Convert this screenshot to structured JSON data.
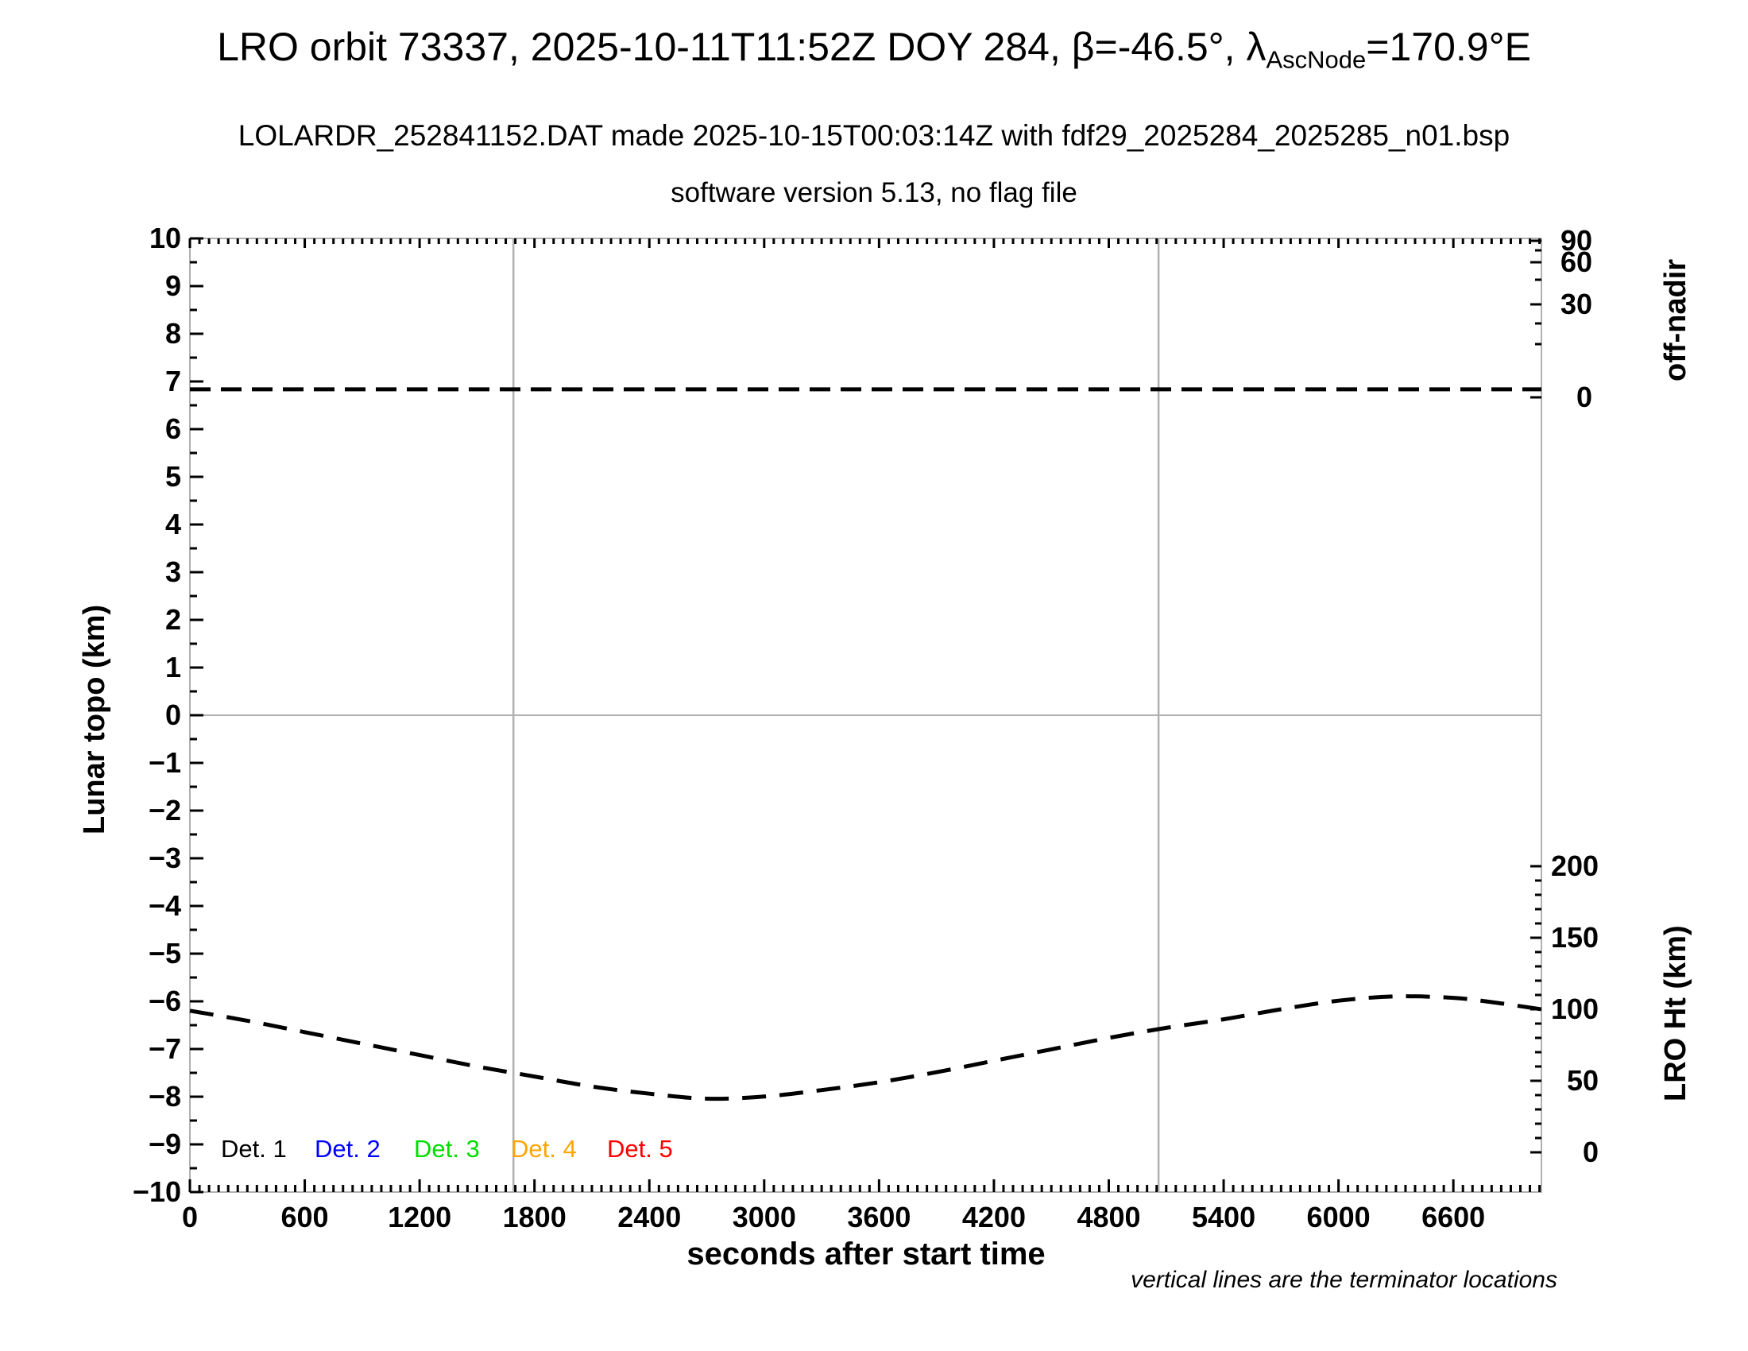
{
  "header": {
    "title_prefix": "LRO orbit 73337, 2025-10-11T11:52Z DOY 284, β=-46.5°, λ",
    "title_sub": "AscNode",
    "title_suffix": "=170.9°E",
    "subtitle": "LOLARDR_252841152.DAT made 2025-10-15T00:03:14Z with fdf29_2025284_2025285_n01.bsp",
    "version_line": "software version 5.13, no flag file"
  },
  "axes": {
    "x": {
      "title": "seconds after start time",
      "tick_labels": [
        "0",
        "600",
        "1200",
        "1800",
        "2400",
        "3000",
        "3600",
        "4200",
        "4800",
        "5400",
        "6000",
        "6600"
      ]
    },
    "left": {
      "title": "Lunar topo (km)",
      "tick_labels": [
        "10",
        "9",
        "8",
        "7",
        "6",
        "5",
        "4",
        "3",
        "2",
        "1",
        "0",
        "−1",
        "−2",
        "−3",
        "−4",
        "−5",
        "−6",
        "−7",
        "−8",
        "−9",
        "−10"
      ]
    },
    "right_top": {
      "title": "off-nadir",
      "tick_labels": [
        "90",
        "60",
        "30",
        "0"
      ]
    },
    "right_bottom": {
      "title": "LRO Ht (km)",
      "tick_labels": [
        "200",
        "150",
        "100",
        "50",
        "0"
      ]
    }
  },
  "legend": {
    "items": [
      {
        "label": "Det. 1",
        "color": "#000000"
      },
      {
        "label": "Det. 2",
        "color": "#0000ff"
      },
      {
        "label": "Det. 3",
        "color": "#00dd00"
      },
      {
        "label": "Det. 4",
        "color": "#ffa500"
      },
      {
        "label": "Det. 5",
        "color": "#ff0000"
      }
    ]
  },
  "footnote": "vertical lines are the terminator locations",
  "colors": {
    "axis_line": "#b0b0b0",
    "tick": "#000000",
    "curve": "#000000"
  },
  "chart_data": {
    "type": "line",
    "title": "LRO orbit 73337, 2025-10-11T11:52Z DOY 284, β=-46.5°, λAscNode=170.9°E",
    "xlabel": "seconds after start time",
    "x_range_seconds": [
      0,
      7060
    ],
    "x_major_tick_interval": 600,
    "x_minor_tick_interval": 50,
    "axes": {
      "left": {
        "label": "Lunar topo (km)",
        "range": [
          -10,
          10
        ],
        "major_tick": 1,
        "minor_tick": 0.5
      },
      "right_upper": {
        "label": "off-nadir",
        "unit": "deg",
        "ticks_deg": [
          90,
          60,
          30,
          0
        ],
        "scale": "nonlinear"
      },
      "right_lower": {
        "label": "LRO Ht (km)",
        "unit": "km",
        "ticks_km": [
          200,
          150,
          100,
          50,
          0
        ],
        "minor_tick_km": 10
      }
    },
    "grid": {
      "horizontal_zero_line": true
    },
    "terminator_lines_seconds": [
      1690,
      5060
    ],
    "series": [
      {
        "name": "spacecraft off-nadir angle",
        "axis": "right_upper",
        "unit": "deg",
        "style": "dashed-black",
        "points": [
          [
            0,
            1.9
          ],
          [
            1000,
            1.9
          ],
          [
            2000,
            1.9
          ],
          [
            3000,
            1.9
          ],
          [
            4000,
            1.9
          ],
          [
            5000,
            1.9
          ],
          [
            6000,
            1.9
          ],
          [
            7060,
            1.9
          ]
        ]
      },
      {
        "name": "LRO height above surface",
        "axis": "right_lower",
        "unit": "km",
        "style": "dashed-black",
        "points": [
          [
            0,
            99
          ],
          [
            300,
            92
          ],
          [
            600,
            84
          ],
          [
            900,
            76
          ],
          [
            1200,
            68
          ],
          [
            1500,
            60
          ],
          [
            1800,
            53
          ],
          [
            2100,
            46
          ],
          [
            2400,
            41
          ],
          [
            2700,
            37.5
          ],
          [
            3000,
            39
          ],
          [
            3300,
            43.5
          ],
          [
            3600,
            49
          ],
          [
            3900,
            56
          ],
          [
            4200,
            64
          ],
          [
            4500,
            72
          ],
          [
            4800,
            80
          ],
          [
            5100,
            87
          ],
          [
            5400,
            93
          ],
          [
            5700,
            100
          ],
          [
            6000,
            106
          ],
          [
            6300,
            109
          ],
          [
            6600,
            108
          ],
          [
            6800,
            105
          ],
          [
            7060,
            100
          ]
        ]
      }
    ],
    "legend_entries": [
      "Det. 1",
      "Det. 2",
      "Det. 3",
      "Det. 4",
      "Det. 5"
    ]
  }
}
